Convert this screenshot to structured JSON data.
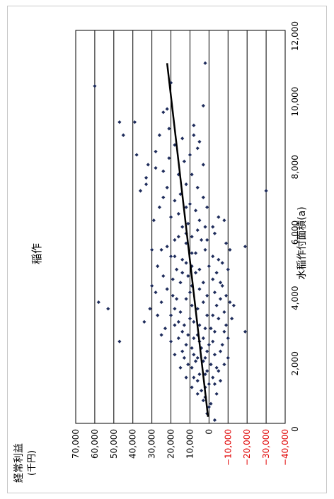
{
  "chart_data": {
    "type": "scatter",
    "title": "稲作",
    "xlabel": "水稲作付面積(a)",
    "ylabel_line1": "経常利益",
    "ylabel_line2": "(千円)",
    "xlim": [
      0,
      12000
    ],
    "ylim": [
      -40000,
      70000
    ],
    "x_ticks": [
      0,
      2000,
      4000,
      6000,
      8000,
      10000,
      12000
    ],
    "x_tick_labels": [
      "0",
      "2,000",
      "4,000",
      "6,000",
      "8,000",
      "10,000",
      "12,000"
    ],
    "y_ticks": [
      70000,
      60000,
      50000,
      40000,
      30000,
      20000,
      10000,
      0,
      -10000,
      -20000,
      -30000,
      -40000
    ],
    "y_tick_labels": [
      "70,000",
      "60,000",
      "50,000",
      "40,000",
      "30,000",
      "20,000",
      "10,000",
      "0",
      "−10,000",
      "−20,000",
      "−30,000",
      "−40,000"
    ],
    "grid": true,
    "orientation": "rotated-90",
    "colors": {
      "points": "#1f2d5c",
      "trend": "#000000",
      "negative_labels": "#e00000",
      "labels": "#000000",
      "grid": "#000000"
    },
    "trendline": {
      "x": [
        200,
        11000
      ],
      "y": [
        500,
        22000
      ]
    },
    "points": [
      [
        10300,
        60000
      ],
      [
        3700,
        58000
      ],
      [
        3500,
        53000
      ],
      [
        2500,
        47000
      ],
      [
        9200,
        47000
      ],
      [
        8800,
        45000
      ],
      [
        9200,
        39000
      ],
      [
        8200,
        38000
      ],
      [
        7300,
        33000
      ],
      [
        7500,
        33000
      ],
      [
        7100,
        36000
      ],
      [
        6200,
        29000
      ],
      [
        7900,
        32000
      ],
      [
        7800,
        28000
      ],
      [
        8300,
        28000
      ],
      [
        8800,
        26000
      ],
      [
        9500,
        24000
      ],
      [
        9600,
        22000
      ],
      [
        10400,
        20000
      ],
      [
        11000,
        2000
      ],
      [
        9700,
        3000
      ],
      [
        8800,
        8000
      ],
      [
        8600,
        5000
      ],
      [
        8400,
        6000
      ],
      [
        7100,
        -30000
      ],
      [
        2800,
        -19000
      ],
      [
        5400,
        -19000
      ],
      [
        6200,
        -8000
      ],
      [
        5000,
        -5000
      ],
      [
        4200,
        30000
      ],
      [
        4800,
        27000
      ],
      [
        5300,
        25000
      ],
      [
        5100,
        18000
      ],
      [
        4600,
        14000
      ],
      [
        5800,
        12000
      ],
      [
        6300,
        20000
      ],
      [
        6700,
        10000
      ],
      [
        7000,
        15000
      ],
      [
        7200,
        6000
      ],
      [
        7600,
        9000
      ],
      [
        7900,
        3000
      ],
      [
        8000,
        13000
      ],
      [
        8500,
        18000
      ],
      [
        9000,
        21000
      ],
      [
        6000,
        -2000
      ],
      [
        5600,
        4000
      ],
      [
        5500,
        -9000
      ],
      [
        4700,
        -10000
      ],
      [
        4300,
        -6000
      ],
      [
        3900,
        -9000
      ],
      [
        3600,
        -13000
      ],
      [
        3200,
        -12000
      ],
      [
        2800,
        -8000
      ],
      [
        2400,
        -7000
      ],
      [
        2000,
        -10000
      ],
      [
        1600,
        -5000
      ],
      [
        1200,
        -3000
      ],
      [
        800,
        2000
      ],
      [
        600,
        -1000
      ],
      [
        300,
        1000
      ],
      [
        100,
        -3000
      ],
      [
        3100,
        34000
      ],
      [
        3300,
        27000
      ],
      [
        3700,
        25000
      ],
      [
        2900,
        23000
      ],
      [
        2500,
        20000
      ],
      [
        2100,
        18000
      ],
      [
        1700,
        15000
      ],
      [
        1400,
        12000
      ],
      [
        1100,
        9000
      ],
      [
        900,
        6000
      ],
      [
        4100,
        22000
      ],
      [
        4400,
        19000
      ],
      [
        3800,
        17000
      ],
      [
        3400,
        15000
      ],
      [
        3000,
        13000
      ],
      [
        2700,
        11000
      ],
      [
        2300,
        9000
      ],
      [
        1900,
        7000
      ],
      [
        1500,
        5000
      ],
      [
        4900,
        12000
      ],
      [
        5200,
        9000
      ],
      [
        4600,
        7000
      ],
      [
        4100,
        5000
      ],
      [
        3700,
        3000
      ],
      [
        3300,
        1000
      ],
      [
        2900,
        -1000
      ],
      [
        2500,
        -2000
      ],
      [
        2100,
        -3000
      ],
      [
        1700,
        -4000
      ],
      [
        5700,
        16000
      ],
      [
        6100,
        11000
      ],
      [
        6500,
        7000
      ],
      [
        6900,
        3000
      ],
      [
        5900,
        6000
      ],
      [
        5300,
        2000
      ],
      [
        4800,
        0
      ],
      [
        4400,
        -2000
      ],
      [
        4000,
        -3000
      ],
      [
        3600,
        -4000
      ],
      [
        3200,
        -5000
      ],
      [
        2800,
        -3000
      ],
      [
        2400,
        0
      ],
      [
        2000,
        2000
      ],
      [
        1600,
        1000
      ],
      [
        1200,
        0
      ],
      [
        3500,
        6000
      ],
      [
        3100,
        8000
      ],
      [
        2700,
        6000
      ],
      [
        2300,
        4000
      ],
      [
        1900,
        3000
      ],
      [
        1500,
        2000
      ],
      [
        4000,
        10000
      ],
      [
        4500,
        11000
      ],
      [
        5000,
        14000
      ],
      [
        5500,
        12000
      ],
      [
        6000,
        14000
      ],
      [
        6400,
        16000
      ],
      [
        6800,
        18000
      ],
      [
        7200,
        22000
      ],
      [
        7700,
        24000
      ],
      [
        8100,
        21000
      ],
      [
        3300,
        20000
      ],
      [
        3000,
        18000
      ],
      [
        2600,
        16000
      ],
      [
        2200,
        14000
      ],
      [
        1800,
        11000
      ],
      [
        1400,
        8000
      ],
      [
        1000,
        4000
      ],
      [
        700,
        3000
      ],
      [
        500,
        0
      ],
      [
        2000,
        6000
      ],
      [
        2600,
        8000
      ],
      [
        3200,
        10000
      ],
      [
        3800,
        12000
      ],
      [
        4300,
        15000
      ],
      [
        4700,
        17000
      ],
      [
        5100,
        20000
      ],
      [
        5400,
        22000
      ],
      [
        3600,
        9000
      ],
      [
        3000,
        5000
      ],
      [
        2600,
        3000
      ],
      [
        2200,
        1000
      ],
      [
        1800,
        -1000
      ],
      [
        1400,
        -2000
      ],
      [
        3900,
        1000
      ],
      [
        4300,
        3000
      ],
      [
        4700,
        5000
      ],
      [
        5200,
        7000
      ],
      [
        5700,
        9000
      ],
      [
        6200,
        5000
      ],
      [
        6600,
        1000
      ],
      [
        5800,
        -3000
      ],
      [
        5100,
        -2000
      ],
      [
        4600,
        -4000
      ],
      [
        4200,
        -7000
      ],
      [
        3800,
        -6000
      ],
      [
        3400,
        -8000
      ],
      [
        3000,
        -9000
      ],
      [
        2600,
        -10000
      ],
      [
        2200,
        -6000
      ],
      [
        1800,
        -8000
      ],
      [
        1300,
        -6000
      ],
      [
        900,
        -4000
      ],
      [
        5300,
        30000
      ],
      [
        4500,
        24000
      ],
      [
        4000,
        28000
      ],
      [
        3500,
        31000
      ],
      [
        2700,
        25000
      ],
      [
        6600,
        26000
      ],
      [
        6900,
        24000
      ],
      [
        5600,
        18000
      ],
      [
        4900,
        -7000
      ],
      [
        5300,
        -11000
      ],
      [
        3700,
        -11000
      ],
      [
        3300,
        -2000
      ],
      [
        2900,
        2000
      ],
      [
        2500,
        5000
      ],
      [
        2100,
        8000
      ],
      [
        1700,
        9000
      ],
      [
        1300,
        6000
      ],
      [
        1100,
        2000
      ],
      [
        2400,
        12000
      ],
      [
        2000,
        13000
      ],
      [
        2800,
        14000
      ],
      [
        3100,
        16000
      ],
      [
        3500,
        18000
      ],
      [
        3900,
        19000
      ],
      [
        4200,
        9000
      ],
      [
        4800,
        9000
      ],
      [
        5600,
        1000
      ],
      [
        6300,
        -5000
      ],
      [
        6000,
        2000
      ],
      [
        6600,
        12000
      ],
      [
        7300,
        12000
      ],
      [
        7600,
        16000
      ],
      [
        8200,
        10000
      ],
      [
        8700,
        14000
      ],
      [
        9100,
        8000
      ]
    ]
  }
}
